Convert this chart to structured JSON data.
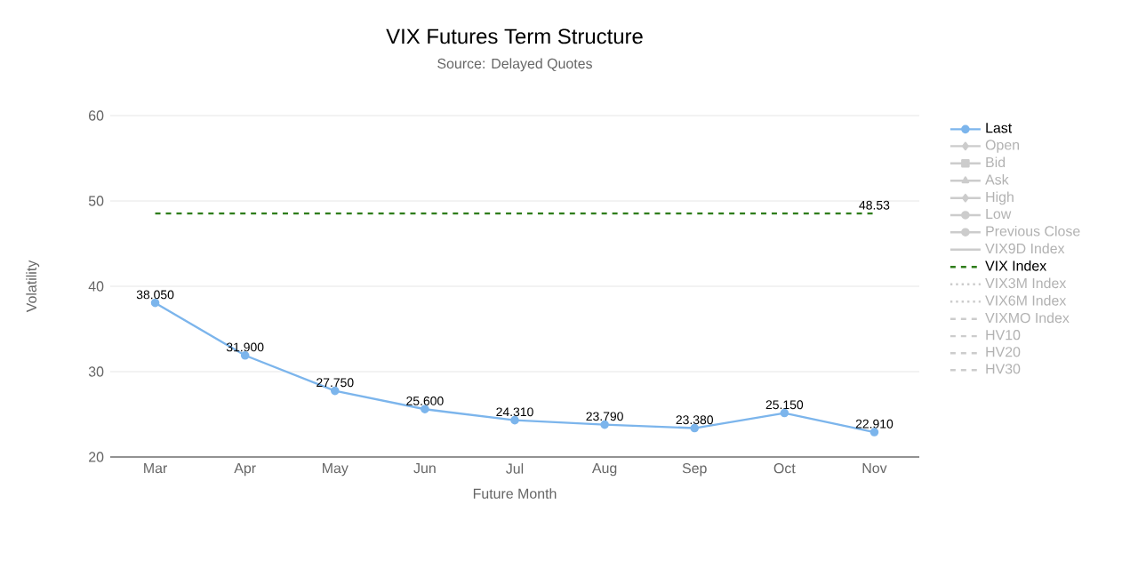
{
  "chart_data": {
    "type": "line",
    "title": "VIX Futures Term Structure",
    "subtitle": "Source: Delayed Quotes",
    "xlabel": "Future Month",
    "ylabel": "Volatility",
    "categories": [
      "Mar",
      "Apr",
      "May",
      "Jun",
      "Jul",
      "Aug",
      "Sep",
      "Oct",
      "Nov"
    ],
    "ylim": [
      20,
      60
    ],
    "yticks": [
      20,
      30,
      40,
      50,
      60
    ],
    "grid": "y",
    "legend": "right",
    "series": [
      {
        "name": "Last",
        "color": "#7cb5ec",
        "marker": "circle",
        "line_style": "solid",
        "values": [
          38.05,
          31.9,
          27.75,
          25.6,
          24.31,
          23.79,
          23.38,
          25.15,
          22.91
        ],
        "value_labels": [
          "38.050",
          "31.900",
          "27.750",
          "25.600",
          "24.310",
          "23.790",
          "23.380",
          "25.150",
          "22.910"
        ]
      },
      {
        "name": "Open",
        "color": "#cccccc",
        "marker": "diamond",
        "line_style": "solid",
        "values": [
          null,
          null,
          null,
          null,
          null,
          null,
          null,
          null,
          null
        ]
      },
      {
        "name": "Bid",
        "color": "#cccccc",
        "marker": "square",
        "line_style": "solid",
        "values": [
          null,
          null,
          null,
          null,
          null,
          null,
          null,
          null,
          null
        ]
      },
      {
        "name": "Ask",
        "color": "#cccccc",
        "marker": "triangle",
        "line_style": "solid",
        "values": [
          null,
          null,
          null,
          null,
          null,
          null,
          null,
          null,
          null
        ]
      },
      {
        "name": "High",
        "color": "#cccccc",
        "marker": "diamond",
        "line_style": "solid",
        "values": [
          null,
          null,
          null,
          null,
          null,
          null,
          null,
          null,
          null
        ]
      },
      {
        "name": "Low",
        "color": "#cccccc",
        "marker": "circle",
        "line_style": "solid",
        "values": [
          null,
          null,
          null,
          null,
          null,
          null,
          null,
          null,
          null
        ]
      },
      {
        "name": "Previous Close",
        "color": "#cccccc",
        "marker": "circle",
        "line_style": "solid",
        "values": [
          null,
          null,
          null,
          null,
          null,
          null,
          null,
          null,
          null
        ]
      },
      {
        "name": "VIX9D Index",
        "color": "#cccccc",
        "marker": "none",
        "line_style": "solid",
        "values": [
          null,
          null,
          null,
          null,
          null,
          null,
          null,
          null,
          null
        ]
      },
      {
        "name": "VIX Index",
        "color": "#2e7d1a",
        "marker": "none",
        "line_style": "dashed",
        "values": [
          48.53,
          48.53,
          48.53,
          48.53,
          48.53,
          48.53,
          48.53,
          48.53,
          48.53
        ],
        "value_labels": [
          null,
          null,
          null,
          null,
          null,
          null,
          null,
          null,
          "48.53"
        ]
      },
      {
        "name": "VIX3M Index",
        "color": "#cccccc",
        "marker": "none",
        "line_style": "dotted",
        "values": [
          null,
          null,
          null,
          null,
          null,
          null,
          null,
          null,
          null
        ]
      },
      {
        "name": "VIX6M Index",
        "color": "#cccccc",
        "marker": "none",
        "line_style": "dotted",
        "values": [
          null,
          null,
          null,
          null,
          null,
          null,
          null,
          null,
          null
        ]
      },
      {
        "name": "VIXMO Index",
        "color": "#cccccc",
        "marker": "none",
        "line_style": "dashed",
        "values": [
          null,
          null,
          null,
          null,
          null,
          null,
          null,
          null,
          null
        ]
      },
      {
        "name": "HV10",
        "color": "#cccccc",
        "marker": "none",
        "line_style": "dashed",
        "values": [
          null,
          null,
          null,
          null,
          null,
          null,
          null,
          null,
          null
        ]
      },
      {
        "name": "HV20",
        "color": "#cccccc",
        "marker": "none",
        "line_style": "dashed",
        "values": [
          null,
          null,
          null,
          null,
          null,
          null,
          null,
          null,
          null
        ]
      },
      {
        "name": "HV30",
        "color": "#cccccc",
        "marker": "none",
        "line_style": "dashed",
        "values": [
          null,
          null,
          null,
          null,
          null,
          null,
          null,
          null,
          null
        ]
      }
    ]
  }
}
